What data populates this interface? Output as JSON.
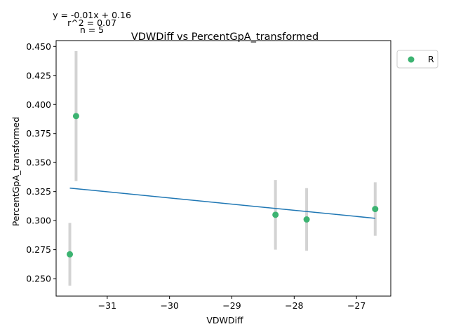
{
  "chart_data": {
    "type": "scatter",
    "title": "VDWDiff vs PercentGpA_transformed",
    "xlabel": "VDWDiff",
    "ylabel": "PercentGpA_transformed",
    "xlim": [
      -31.82,
      -26.45
    ],
    "ylim": [
      0.235,
      0.455
    ],
    "x_ticks": [
      -31,
      -30,
      -29,
      -28,
      -27
    ],
    "x_tick_labels": [
      "−31",
      "−30",
      "−29",
      "−28",
      "−27"
    ],
    "y_ticks": [
      0.25,
      0.275,
      0.3,
      0.325,
      0.35,
      0.375,
      0.4,
      0.425,
      0.45
    ],
    "y_tick_labels": [
      "0.250",
      "0.275",
      "0.300",
      "0.325",
      "0.350",
      "0.375",
      "0.400",
      "0.425",
      "0.450"
    ],
    "grid": false,
    "legend": {
      "position": "outside-top-right",
      "entries": [
        "R"
      ]
    },
    "annotation": [
      "y = -0.01x + 0.16",
      "r^2 = 0.07",
      "n = 5"
    ],
    "series": [
      {
        "name": "R",
        "color": "#3cb371",
        "points": [
          {
            "x": -31.6,
            "y": 0.271,
            "err": 0.027
          },
          {
            "x": -31.5,
            "y": 0.39,
            "err": 0.056
          },
          {
            "x": -28.3,
            "y": 0.305,
            "err": 0.03
          },
          {
            "x": -27.8,
            "y": 0.301,
            "err": 0.027
          },
          {
            "x": -26.7,
            "y": 0.31,
            "err": 0.023
          }
        ]
      }
    ],
    "fit_line": {
      "color": "#1f77b4",
      "x": [
        -31.6,
        -26.7
      ],
      "y": [
        0.328,
        0.302
      ]
    },
    "errorbar_color": "#d3d3d3"
  }
}
